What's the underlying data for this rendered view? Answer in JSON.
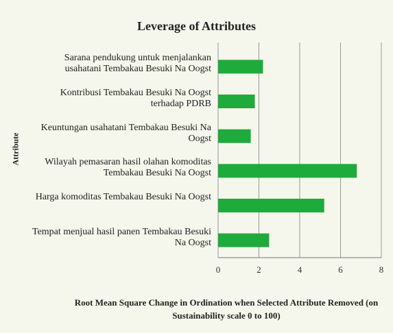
{
  "chart_data": {
    "type": "barh",
    "title": "Leverage of Attributes",
    "ylabel": "Attribute",
    "xlabel": "Root Mean Square Change in Ordination when Selected Attribute Removed (on Sustainability scale 0 to 100)",
    "categories": [
      "Sarana pendukung untuk menjalankan usahatani Tembakau Besuki Na Oogst",
      "Kontribusi Tembakau Besuki Na Oogst terhadap PDRB",
      "Keuntungan usahatani Tembakau Besuki Na Oogst",
      "Wilayah pemasaran hasil olahan komoditas Tembakau Besuki Na Oogst",
      "Harga komoditas Tembakau Besuki Na Oogst",
      "Tempat menjual hasil panen Tembakau Besuki Na Oogst"
    ],
    "values": [
      2.2,
      1.8,
      1.6,
      6.8,
      5.2,
      2.5
    ],
    "color": "#1faa3c",
    "xlim": [
      0,
      8
    ],
    "xticks": [
      0,
      2,
      4,
      6,
      8
    ],
    "grid": true
  }
}
